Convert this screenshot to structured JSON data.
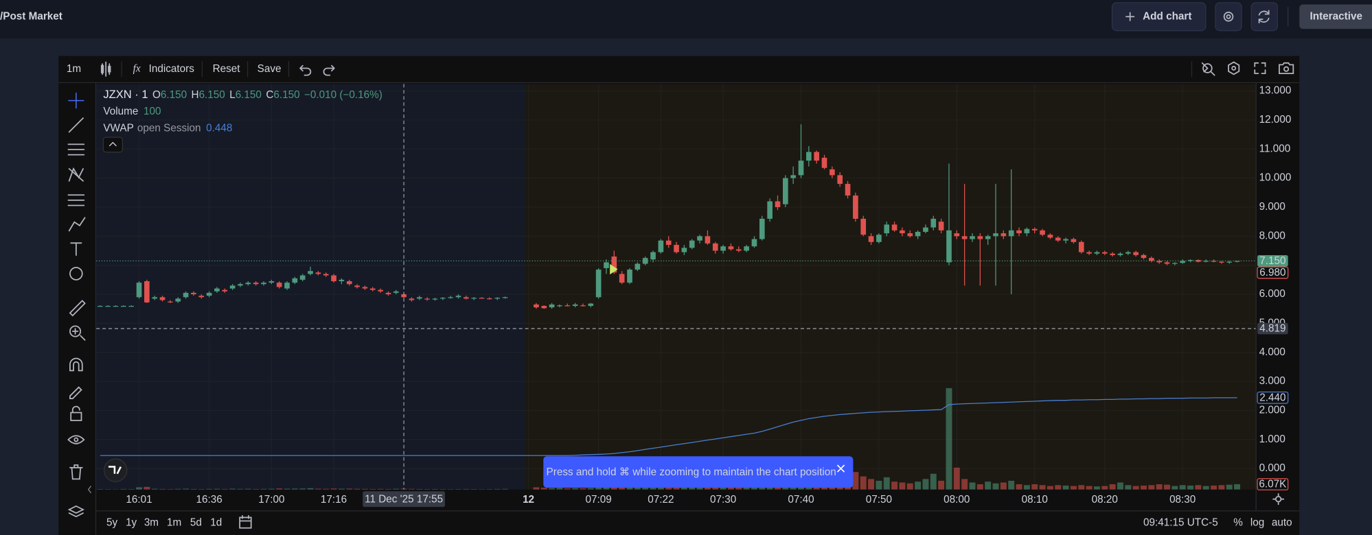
{
  "header": {
    "title": "/Post Market",
    "add_chart": "Add chart",
    "mode": "Interactive"
  },
  "toolbar": {
    "interval": "1m",
    "fx": "fx",
    "indicators": "Indicators",
    "reset": "Reset",
    "save": "Save"
  },
  "chart_data": {
    "type": "candlestick",
    "legend": {
      "symbol": "JZXN · 1",
      "ohlc": [
        [
          "O",
          "6.150"
        ],
        [
          "H",
          "6.150"
        ],
        [
          "L",
          "6.150"
        ],
        [
          "C",
          "6.150"
        ]
      ],
      "change": "−0.010 (−0.16%)",
      "volume": [
        "Volume",
        "100"
      ],
      "vwap": [
        "VWAP",
        "open Session",
        "0.448"
      ]
    },
    "up_color": "#4e9a7e",
    "down_color": "#e0524f",
    "vwap_color": "#4a7fd1",
    "ylim": [
      -0.72,
      13.24
    ],
    "yticks": [
      {
        "value": 0,
        "label": "0.000"
      },
      {
        "value": 1,
        "label": "1.000"
      },
      {
        "value": 2,
        "label": "2.000"
      },
      {
        "value": 3,
        "label": "3.000"
      },
      {
        "value": 4,
        "label": "4.000"
      },
      {
        "value": 5,
        "label": "5.000"
      },
      {
        "value": 6,
        "label": "6.000"
      },
      {
        "value": 7,
        "label": "7.000"
      },
      {
        "value": 8,
        "label": "8.000"
      },
      {
        "value": 9,
        "label": "9.000"
      },
      {
        "value": 10,
        "label": "10.000"
      },
      {
        "value": 11,
        "label": "11.000"
      },
      {
        "value": 12,
        "label": "12.000"
      },
      {
        "value": 13,
        "label": "13.000"
      }
    ],
    "xticks": [
      {
        "value": 5,
        "label": "16:01"
      },
      {
        "value": 14,
        "label": "16:36"
      },
      {
        "value": 22,
        "label": "17:00"
      },
      {
        "value": 30,
        "label": "17:16"
      },
      {
        "value": 55,
        "label": "12"
      },
      {
        "value": 64,
        "label": "07:09"
      },
      {
        "value": 72,
        "label": "07:22"
      },
      {
        "value": 80,
        "label": "07:30"
      },
      {
        "value": 90,
        "label": "07:40"
      },
      {
        "value": 100,
        "label": "07:50"
      },
      {
        "value": 110,
        "label": "08:00"
      },
      {
        "value": 120,
        "label": "08:10"
      },
      {
        "value": 129,
        "label": "08:20"
      },
      {
        "value": 139,
        "label": "08:30"
      }
    ],
    "candles": [
      [
        5.6,
        5.62,
        5.58,
        5.6
      ],
      [
        5.6,
        5.62,
        5.58,
        5.6
      ],
      [
        5.6,
        5.62,
        5.58,
        5.6
      ],
      [
        5.6,
        5.62,
        5.58,
        5.6
      ],
      [
        5.6,
        5.62,
        5.58,
        5.6
      ],
      [
        5.9,
        6.45,
        5.85,
        6.4
      ],
      [
        6.45,
        6.5,
        5.7,
        5.72
      ],
      [
        5.85,
        5.95,
        5.8,
        5.9
      ],
      [
        5.9,
        5.95,
        5.75,
        5.8
      ],
      [
        5.75,
        5.8,
        5.7,
        5.72
      ],
      [
        5.75,
        5.9,
        5.7,
        5.85
      ],
      [
        5.9,
        6.1,
        5.85,
        6.05
      ],
      [
        6.05,
        6.1,
        5.95,
        6.0
      ],
      [
        5.95,
        6.0,
        5.85,
        5.9
      ],
      [
        5.95,
        6.1,
        5.9,
        6.05
      ],
      [
        6.1,
        6.25,
        6.05,
        6.2
      ],
      [
        6.15,
        6.2,
        6.05,
        6.1
      ],
      [
        6.2,
        6.35,
        6.15,
        6.3
      ],
      [
        6.3,
        6.4,
        6.25,
        6.35
      ],
      [
        6.35,
        6.45,
        6.3,
        6.4
      ],
      [
        6.4,
        6.45,
        6.3,
        6.35
      ],
      [
        6.35,
        6.45,
        6.3,
        6.4
      ],
      [
        6.4,
        6.5,
        6.35,
        6.45
      ],
      [
        6.4,
        6.45,
        6.2,
        6.25
      ],
      [
        6.2,
        6.45,
        6.15,
        6.4
      ],
      [
        6.4,
        6.6,
        6.35,
        6.55
      ],
      [
        6.5,
        6.7,
        6.45,
        6.65
      ],
      [
        6.7,
        6.95,
        6.65,
        6.8
      ],
      [
        6.75,
        6.8,
        6.65,
        6.7
      ],
      [
        6.7,
        6.75,
        6.6,
        6.65
      ],
      [
        6.65,
        6.7,
        6.4,
        6.45
      ],
      [
        6.45,
        6.55,
        6.35,
        6.5
      ],
      [
        6.45,
        6.5,
        6.3,
        6.35
      ],
      [
        6.3,
        6.35,
        6.2,
        6.25
      ],
      [
        6.25,
        6.3,
        6.15,
        6.2
      ],
      [
        6.2,
        6.25,
        6.1,
        6.15
      ],
      [
        6.15,
        6.2,
        6.05,
        6.1
      ],
      [
        6.05,
        6.1,
        5.95,
        6.0
      ],
      [
        6.05,
        6.15,
        6.0,
        6.1
      ],
      [
        6.0,
        6.05,
        5.85,
        5.9
      ],
      [
        5.85,
        5.9,
        5.75,
        5.8
      ],
      [
        5.85,
        5.95,
        5.8,
        5.9
      ],
      [
        5.85,
        5.9,
        5.78,
        5.82
      ],
      [
        5.82,
        5.88,
        5.78,
        5.85
      ],
      [
        5.85,
        5.9,
        5.8,
        5.88
      ],
      [
        5.88,
        5.95,
        5.85,
        5.9
      ],
      [
        5.9,
        6.0,
        5.85,
        5.95
      ],
      [
        5.9,
        5.95,
        5.82,
        5.85
      ],
      [
        5.85,
        5.9,
        5.8,
        5.88
      ],
      [
        5.88,
        5.9,
        5.85,
        5.86
      ],
      [
        5.86,
        5.9,
        5.82,
        5.85
      ],
      [
        5.85,
        5.9,
        5.8,
        5.88
      ],
      [
        5.88,
        5.92,
        5.85,
        5.9
      ],
      null,
      null,
      null,
      [
        5.65,
        5.7,
        5.5,
        5.55
      ],
      [
        5.6,
        5.62,
        5.5,
        5.52
      ],
      [
        5.55,
        5.7,
        5.5,
        5.65
      ],
      [
        5.6,
        5.65,
        5.55,
        5.62
      ],
      [
        5.62,
        5.68,
        5.58,
        5.6
      ],
      [
        5.6,
        5.7,
        5.55,
        5.65
      ],
      [
        5.62,
        5.68,
        5.58,
        5.6
      ],
      [
        5.6,
        5.7,
        5.55,
        5.68
      ],
      [
        5.9,
        6.9,
        5.85,
        6.85
      ],
      [
        6.9,
        7.2,
        6.7,
        7.1
      ],
      [
        7.3,
        7.5,
        6.7,
        6.75
      ],
      [
        6.7,
        6.8,
        6.35,
        6.4
      ],
      [
        6.4,
        6.9,
        6.35,
        6.85
      ],
      [
        6.85,
        7.1,
        6.8,
        7.05
      ],
      [
        7.05,
        7.3,
        7.0,
        7.25
      ],
      [
        7.2,
        7.5,
        7.1,
        7.45
      ],
      [
        7.45,
        7.9,
        7.4,
        7.85
      ],
      [
        7.85,
        8.0,
        7.6,
        7.7
      ],
      [
        7.7,
        7.8,
        7.4,
        7.45
      ],
      [
        7.45,
        7.7,
        7.35,
        7.6
      ],
      [
        7.6,
        7.9,
        7.55,
        7.85
      ],
      [
        7.85,
        8.05,
        7.75,
        8.0
      ],
      [
        8.0,
        8.2,
        7.7,
        7.75
      ],
      [
        7.75,
        7.8,
        7.4,
        7.5
      ],
      [
        7.5,
        7.7,
        7.4,
        7.65
      ],
      [
        7.65,
        7.75,
        7.5,
        7.55
      ],
      [
        7.55,
        7.65,
        7.45,
        7.5
      ],
      [
        7.5,
        7.7,
        7.45,
        7.65
      ],
      [
        7.65,
        8.0,
        7.6,
        7.9
      ],
      [
        7.9,
        8.7,
        7.85,
        8.6
      ],
      [
        8.6,
        9.3,
        8.5,
        9.2
      ],
      [
        9.2,
        9.4,
        8.9,
        9.0
      ],
      [
        9.1,
        10.1,
        9.0,
        10.0
      ],
      [
        10.0,
        10.4,
        9.8,
        10.1
      ],
      [
        10.1,
        11.85,
        10.0,
        10.6
      ],
      [
        10.6,
        11.1,
        10.4,
        10.9
      ],
      [
        10.9,
        10.95,
        10.5,
        10.6
      ],
      [
        10.7,
        10.8,
        10.3,
        10.35
      ],
      [
        10.3,
        10.4,
        10.0,
        10.1
      ],
      [
        10.1,
        10.2,
        9.7,
        9.8
      ],
      [
        9.8,
        9.9,
        9.3,
        9.4
      ],
      [
        9.4,
        9.5,
        8.5,
        8.6
      ],
      [
        8.6,
        8.7,
        8.0,
        8.05
      ],
      [
        8.0,
        8.1,
        7.7,
        7.8
      ],
      [
        7.8,
        8.1,
        7.75,
        8.05
      ],
      [
        8.1,
        8.5,
        8.0,
        8.4
      ],
      [
        8.4,
        8.5,
        8.15,
        8.2
      ],
      [
        8.2,
        8.3,
        8.0,
        8.1
      ],
      [
        8.1,
        8.2,
        7.95,
        8.0
      ],
      [
        8.0,
        8.2,
        7.9,
        8.15
      ],
      [
        8.15,
        8.4,
        8.1,
        8.3
      ],
      [
        8.3,
        8.7,
        8.2,
        8.6
      ],
      [
        8.5,
        8.6,
        8.1,
        8.2
      ],
      [
        7.1,
        10.5,
        7.0,
        8.2
      ],
      [
        8.1,
        8.2,
        7.9,
        8.0
      ],
      [
        8.0,
        9.8,
        6.3,
        7.9
      ],
      [
        7.9,
        8.1,
        7.8,
        8.0
      ],
      [
        8.0,
        8.1,
        6.3,
        7.9
      ],
      [
        7.9,
        8.05,
        7.7,
        8.0
      ],
      [
        8.0,
        9.8,
        6.3,
        8.1
      ],
      [
        8.1,
        8.2,
        7.9,
        8.0
      ],
      [
        8.0,
        10.3,
        6.0,
        8.2
      ],
      [
        8.2,
        8.3,
        8.0,
        8.1
      ],
      [
        8.1,
        8.3,
        8.0,
        8.25
      ],
      [
        8.25,
        8.3,
        8.1,
        8.2
      ],
      [
        8.2,
        8.25,
        8.0,
        8.05
      ],
      [
        8.05,
        8.1,
        7.9,
        7.95
      ],
      [
        7.95,
        8.0,
        7.8,
        7.85
      ],
      [
        7.85,
        7.95,
        7.75,
        7.9
      ],
      [
        7.9,
        7.95,
        7.75,
        7.8
      ],
      [
        7.8,
        7.85,
        7.4,
        7.45
      ],
      [
        7.45,
        7.5,
        7.35,
        7.4
      ],
      [
        7.4,
        7.5,
        7.35,
        7.45
      ],
      [
        7.45,
        7.5,
        7.35,
        7.4
      ],
      [
        7.4,
        7.45,
        7.3,
        7.35
      ],
      [
        7.35,
        7.45,
        7.3,
        7.4
      ],
      [
        7.4,
        7.5,
        7.35,
        7.45
      ],
      [
        7.45,
        7.5,
        7.3,
        7.35
      ],
      [
        7.35,
        7.4,
        7.2,
        7.25
      ],
      [
        7.25,
        7.3,
        7.1,
        7.15
      ],
      [
        7.15,
        7.2,
        7.05,
        7.1
      ],
      [
        7.1,
        7.15,
        7.0,
        7.05
      ],
      [
        7.05,
        7.1,
        7.0,
        7.08
      ],
      [
        7.08,
        7.2,
        7.05,
        7.15
      ],
      [
        7.15,
        7.2,
        7.1,
        7.18
      ],
      [
        7.18,
        7.2,
        7.1,
        7.12
      ],
      [
        7.12,
        7.2,
        7.1,
        7.15
      ],
      [
        7.15,
        7.2,
        7.1,
        7.12
      ],
      [
        7.12,
        7.15,
        7.05,
        7.1
      ],
      [
        7.1,
        7.15,
        7.05,
        7.12
      ],
      [
        7.12,
        7.15,
        7.1,
        7.15
      ]
    ],
    "volume": {
      "ylim": [
        0,
        150000
      ],
      "values": [
        500,
        400,
        300,
        600,
        500,
        2500,
        3000,
        800,
        600,
        500,
        700,
        900,
        600,
        500,
        700,
        800,
        600,
        900,
        700,
        800,
        600,
        700,
        800,
        1200,
        900,
        1000,
        1100,
        1500,
        900,
        800,
        1100,
        900,
        1000,
        800,
        700,
        600,
        700,
        600,
        800,
        900,
        700,
        600,
        500,
        600,
        500,
        400,
        500,
        600,
        500,
        400,
        500,
        600,
        700,
        null,
        null,
        null,
        2500,
        2000,
        1500,
        1800,
        1200,
        1500,
        1300,
        1600,
        9000,
        7000,
        8000,
        6000,
        5000,
        5500,
        4500,
        5000,
        6000,
        4000,
        3500,
        4000,
        4500,
        5000,
        4000,
        3500,
        3000,
        3500,
        4000,
        3000,
        4500,
        8000,
        10000,
        7000,
        12000,
        15000,
        18000,
        14000,
        16000,
        20000,
        22000,
        18000,
        25000,
        20000,
        15000,
        12000,
        10000,
        14000,
        9000,
        8000,
        7000,
        9000,
        12000,
        18000,
        10000,
        116000,
        25000,
        12000,
        8000,
        6000,
        9000,
        7000,
        8000,
        10000,
        6000,
        5000,
        6000,
        5000,
        4000,
        5000,
        4500,
        4000,
        5000,
        4000,
        3500,
        4000,
        6000,
        8000,
        5000,
        4000,
        4500,
        5000,
        6000,
        5500,
        4000,
        5000,
        4500,
        5000,
        4000,
        4500,
        5000,
        5500,
        6070
      ]
    },
    "vwap": {
      "values": [
        0.45,
        0.45,
        0.45,
        0.45,
        0.45,
        0.45,
        0.45,
        0.45,
        0.45,
        0.45,
        0.45,
        0.45,
        0.45,
        0.45,
        0.45,
        0.45,
        0.45,
        0.45,
        0.45,
        0.45,
        0.45,
        0.45,
        0.45,
        0.45,
        0.45,
        0.45,
        0.45,
        0.45,
        0.45,
        0.45,
        0.45,
        0.45,
        0.45,
        0.45,
        0.45,
        0.45,
        0.45,
        0.45,
        0.45,
        0.45,
        0.45,
        0.45,
        0.45,
        0.45,
        0.45,
        0.45,
        0.45,
        0.45,
        0.45,
        0.45,
        0.45,
        0.45,
        0.45,
        0.45,
        0.45,
        0.45,
        0.45,
        0.45,
        0.45,
        0.45,
        0.45,
        0.46,
        0.47,
        0.48,
        0.49,
        0.5,
        0.52,
        0.55,
        0.58,
        0.62,
        0.66,
        0.7,
        0.74,
        0.78,
        0.82,
        0.86,
        0.9,
        0.94,
        0.98,
        1.02,
        1.06,
        1.1,
        1.14,
        1.18,
        1.22,
        1.28,
        1.36,
        1.44,
        1.52,
        1.6,
        1.66,
        1.72,
        1.76,
        1.8,
        1.83,
        1.86,
        1.88,
        1.9,
        1.92,
        1.94,
        1.95,
        1.96,
        1.97,
        1.98,
        1.99,
        2.0,
        2.01,
        2.02,
        2.03,
        2.2,
        2.22,
        2.23,
        2.24,
        2.25,
        2.26,
        2.27,
        2.28,
        2.29,
        2.3,
        2.31,
        2.32,
        2.33,
        2.34,
        2.35,
        2.35,
        2.36,
        2.36,
        2.37,
        2.37,
        2.38,
        2.38,
        2.39,
        2.39,
        2.4,
        2.4,
        2.41,
        2.41,
        2.42,
        2.42,
        2.42,
        2.43,
        2.43,
        2.43,
        2.44,
        2.44,
        2.44,
        2.44
      ]
    },
    "last_price": {
      "value": 7.15,
      "label": "7.150"
    },
    "close_label": {
      "value": 6.98,
      "label": "6.980"
    },
    "vwap_label": {
      "value": 2.44,
      "label": "2.440"
    },
    "volume_label": {
      "value": 6070,
      "label": "6.07K"
    },
    "crosshair": {
      "x": 39,
      "price": {
        "value": 4.819,
        "label": "4.819"
      },
      "time": "11 Dec '25  17:55"
    }
  },
  "toast": {
    "text": "Press and hold ⌘ while zooming to maintain the chart position"
  },
  "bottom_bar": {
    "ranges": [
      "5y",
      "1y",
      "3m",
      "1m",
      "5d",
      "1d"
    ],
    "clock": "09:41:15 UTC-5",
    "toggles": [
      "%",
      "log",
      "auto"
    ]
  }
}
